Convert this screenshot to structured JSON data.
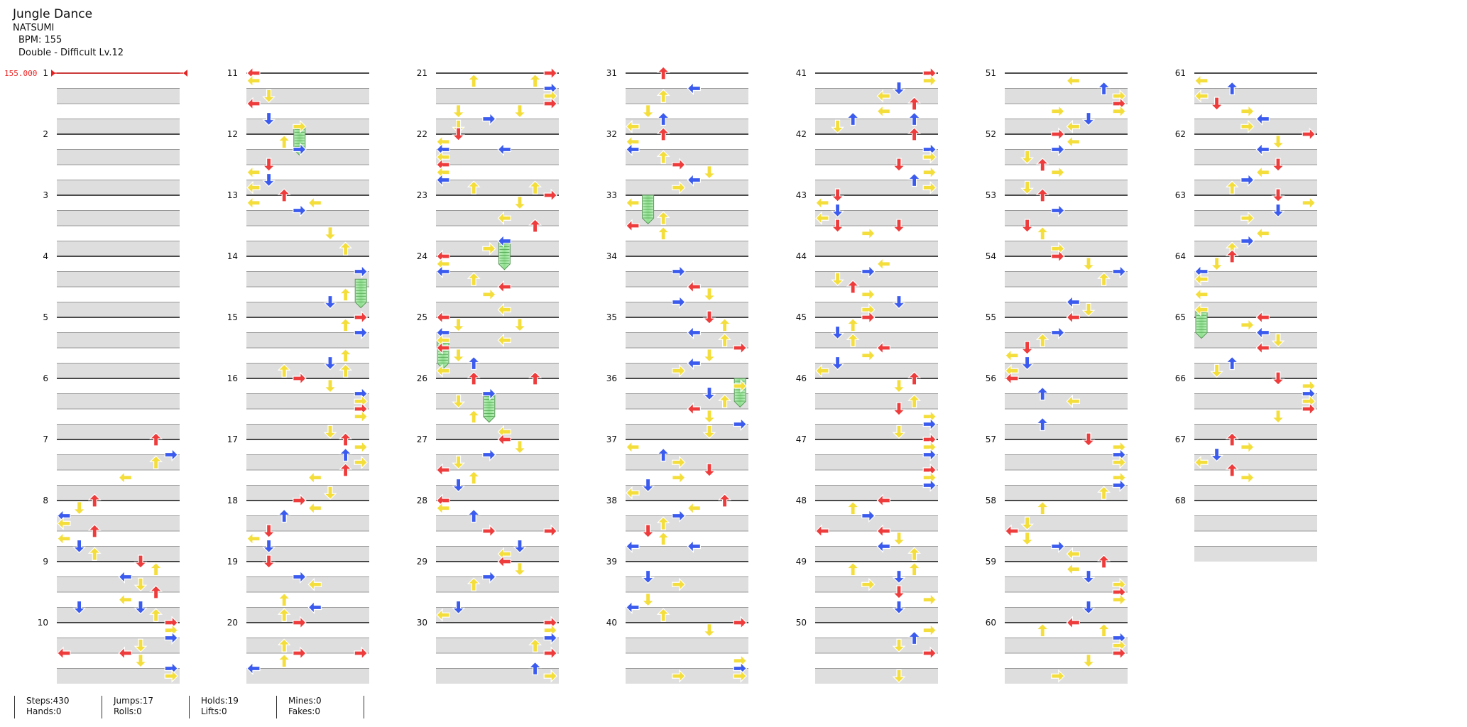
{
  "song": {
    "title": "Jungle Dance",
    "artist": "NATSUMI",
    "bpm_text": "BPM: 155",
    "difficulty_text": "Double - Difficult Lv.12"
  },
  "bpm_marker": "155.000",
  "measures": [
    "1",
    "2",
    "3",
    "4",
    "5",
    "6",
    "7",
    "8",
    "9",
    "10",
    "11",
    "12",
    "13",
    "14",
    "15",
    "16",
    "17",
    "18",
    "19",
    "20",
    "21",
    "22",
    "23",
    "24",
    "25",
    "26",
    "27",
    "28",
    "29",
    "30",
    "31",
    "32",
    "33",
    "34",
    "35",
    "36",
    "37",
    "38",
    "39",
    "40",
    "41",
    "42",
    "43",
    "44",
    "45",
    "46",
    "47",
    "48",
    "49",
    "50",
    "51",
    "52",
    "53",
    "54",
    "55",
    "56",
    "57",
    "58",
    "59",
    "60",
    "61",
    "62",
    "63",
    "64",
    "65",
    "66",
    "67",
    "68"
  ],
  "colors": {
    "quarter": "#ee3b3b",
    "eighth": "#3b5bee",
    "sixteenth": "#f4de3b",
    "hold": "#7ed87e",
    "stripe": "#dedede",
    "bpm": "#e22222"
  },
  "stats": {
    "steps": "Steps:430",
    "hands": "Hands:0",
    "jumps": "Jumps:17",
    "rolls": "Rolls:0",
    "holds": "Holds:19",
    "lifts": "Lifts:0",
    "mines": "Mines:0",
    "fakes": "Fakes:0"
  }
}
